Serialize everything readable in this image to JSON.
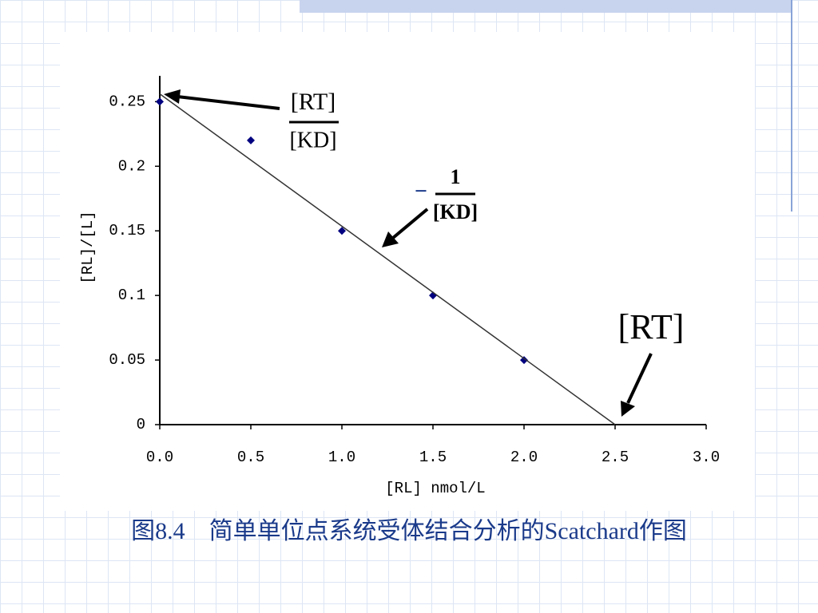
{
  "chart_data": {
    "type": "scatter",
    "caption": "图8.4　简单单位点系统受体结合分析的Scatchard作图",
    "x_label": "[RL] nmol/L",
    "y_label": "[RL]/[L]",
    "series": [
      {
        "type": "scatter",
        "color": "#000080",
        "x": [
          0,
          0.5,
          1,
          1.5,
          2
        ],
        "values": [
          0.25,
          0.22,
          0.15,
          0.1,
          0.05
        ]
      },
      {
        "type": "line",
        "color": "#333333",
        "x": [
          0,
          2.5
        ],
        "values": [
          0.256,
          0
        ]
      }
    ],
    "xlim": [
      0,
      3
    ],
    "ylim": [
      0,
      0.27
    ],
    "xticks": [
      {
        "value": 0,
        "label": "0.0"
      },
      0.5,
      {
        "value": 1,
        "label": "1.0"
      },
      1.5,
      {
        "value": 2,
        "label": "2.0"
      },
      2.5,
      {
        "value": 3,
        "label": "3.0"
      }
    ],
    "yticks": [
      0,
      0.05,
      0.1,
      0.15,
      0.2,
      0.25
    ],
    "annotations": [
      "[RT]",
      "[KD]",
      "−",
      "1",
      "[KD]",
      "[RT]"
    ]
  }
}
